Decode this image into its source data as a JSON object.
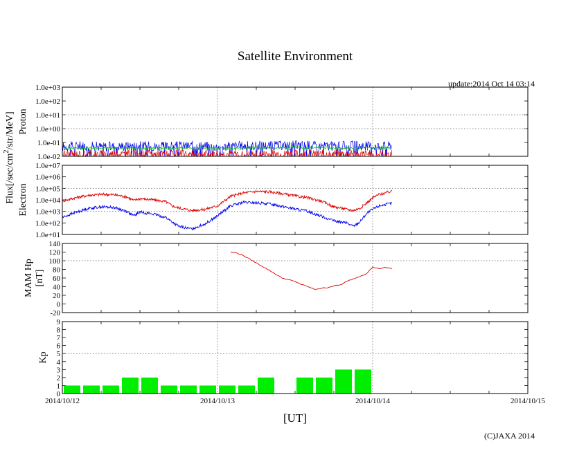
{
  "figure": {
    "title": "Satellite Environment",
    "update": "update:2014 Oct 14 03:14",
    "copyright": "(C)JAXA 2014",
    "xlabel": "[UT]",
    "xticks": [
      "2014/10/12",
      "2014/10/13",
      "2014/10/14",
      "2014/10/15"
    ],
    "flux_label": "Flux[/sec/cm",
    "flux_label_sup": "2",
    "flux_label_rest": "/str/MeV]"
  },
  "colors": {
    "red": "#dd0000",
    "blue": "#0000ee",
    "green": "#00cc00",
    "kp_bar": "#00ee00"
  },
  "chart_data": [
    {
      "type": "line",
      "name": "proton",
      "ylabel": "Proton",
      "yscale": "log",
      "ylim": [
        0.01,
        1000
      ],
      "yticks": [
        "1.0e-02",
        "1.0e-01",
        "1.0e+00",
        "1.0e+01",
        "1.0e+02",
        "1.0e+03"
      ],
      "xlim": [
        "2014/10/12 00:00",
        "2014/10/15 00:00"
      ],
      "series": [
        {
          "color": "blue",
          "x": [
            0,
            3,
            6,
            9,
            12,
            15,
            18,
            21,
            24,
            27,
            30,
            33,
            36,
            39,
            42,
            45,
            48,
            51
          ],
          "y": [
            0.05,
            0.06,
            0.05,
            0.055,
            0.06,
            0.05,
            0.055,
            0.06,
            0.05,
            0.055,
            0.06,
            0.06,
            0.065,
            0.06,
            0.055,
            0.06,
            0.055,
            0.06
          ]
        },
        {
          "color": "green",
          "x": [
            0,
            3,
            6,
            9,
            12,
            15,
            18,
            21,
            24,
            27,
            30,
            33,
            36,
            39,
            42,
            45,
            48,
            51
          ],
          "y": [
            0.04,
            0.04,
            0.038,
            0.04,
            0.04,
            0.038,
            0.04,
            0.04,
            0.038,
            0.04,
            0.042,
            0.042,
            0.045,
            0.042,
            0.04,
            0.042,
            0.04,
            0.042
          ]
        },
        {
          "color": "red",
          "x": [
            0,
            3,
            6,
            9,
            12,
            15,
            18,
            21,
            24,
            27,
            30,
            33,
            36,
            39,
            42,
            45,
            48,
            51
          ],
          "y": [
            0.015,
            0.014,
            0.015,
            0.015,
            0.014,
            0.015,
            0.015,
            0.014,
            0.015,
            0.015,
            0.014,
            0.015,
            0.015,
            0.014,
            0.015,
            0.015,
            0.014,
            0.015
          ]
        }
      ]
    },
    {
      "type": "line",
      "name": "electron",
      "ylabel": "Electron",
      "yscale": "log",
      "ylim": [
        10,
        10000000
      ],
      "yticks": [
        "1.0e+01",
        "1.0e+02",
        "1.0e+03",
        "1.0e+04",
        "1.0e+05",
        "1.0e+06",
        "1.0e+07"
      ],
      "xlim": [
        "2014/10/12 00:00",
        "2014/10/15 00:00"
      ],
      "series": [
        {
          "color": "red",
          "x": [
            0,
            2,
            4,
            6,
            8,
            10,
            11,
            12,
            14,
            16,
            17,
            18,
            20,
            22,
            24,
            26,
            28,
            30,
            32,
            34,
            36,
            38,
            40,
            42,
            43,
            44,
            45,
            46,
            47,
            48,
            49,
            50,
            51
          ],
          "y": [
            8000,
            15000,
            25000,
            30000,
            28000,
            18000,
            9000,
            13000,
            10000,
            7000,
            3000,
            2000,
            1200,
            1500,
            3000,
            20000,
            40000,
            55000,
            50000,
            35000,
            22000,
            15000,
            8000,
            2500,
            2000,
            1500,
            1200,
            1800,
            5000,
            15000,
            30000,
            40000,
            55000
          ]
        },
        {
          "color": "blue",
          "x": [
            0,
            2,
            4,
            6,
            8,
            10,
            11,
            12,
            14,
            16,
            17,
            18,
            20,
            22,
            24,
            26,
            28,
            30,
            32,
            34,
            36,
            38,
            40,
            42,
            43,
            44,
            45,
            46,
            47,
            48,
            49,
            50,
            51
          ],
          "y": [
            300,
            800,
            1800,
            2500,
            2200,
            1000,
            400,
            900,
            600,
            300,
            120,
            50,
            30,
            80,
            400,
            3000,
            6000,
            5500,
            4500,
            2800,
            1600,
            1000,
            400,
            150,
            120,
            100,
            50,
            120,
            600,
            1500,
            3000,
            4000,
            5000
          ]
        }
      ]
    },
    {
      "type": "line",
      "name": "mam-hp",
      "ylabel": "MAM Hp",
      "ylabel2": "[nT]",
      "ylim": [
        -20,
        140
      ],
      "yticks": [
        "-20",
        "0",
        "20",
        "40",
        "60",
        "80",
        "100",
        "120",
        "140"
      ],
      "xlim": [
        "2014/10/12 00:00",
        "2014/10/15 00:00"
      ],
      "series": [
        {
          "color": "red",
          "x": [
            26,
            27,
            28,
            30,
            32,
            34,
            36,
            37,
            38,
            39,
            40,
            41,
            42,
            43,
            44,
            45,
            46,
            47,
            48,
            49,
            50,
            51
          ],
          "y": [
            120,
            118,
            112,
            95,
            78,
            60,
            52,
            45,
            40,
            34,
            36,
            38,
            42,
            44,
            52,
            58,
            64,
            70,
            85,
            82,
            84,
            82
          ]
        }
      ]
    },
    {
      "type": "bar",
      "name": "kp",
      "ylabel": "Kp",
      "ylim": [
        0,
        9
      ],
      "yticks": [
        "0",
        "1",
        "2",
        "3",
        "4",
        "5",
        "6",
        "7",
        "8",
        "9"
      ],
      "xlim": [
        "2014/10/12 00:00",
        "2014/10/15 00:00"
      ],
      "bar_width_hours": 3,
      "x_start_hours": [
        0,
        3,
        6,
        9,
        12,
        15,
        18,
        21,
        24,
        27,
        30,
        33,
        36,
        39,
        42,
        45
      ],
      "values": [
        1,
        1,
        1,
        2,
        2,
        1,
        1,
        1,
        1,
        1,
        2,
        0,
        2,
        2,
        3,
        3
      ]
    }
  ]
}
